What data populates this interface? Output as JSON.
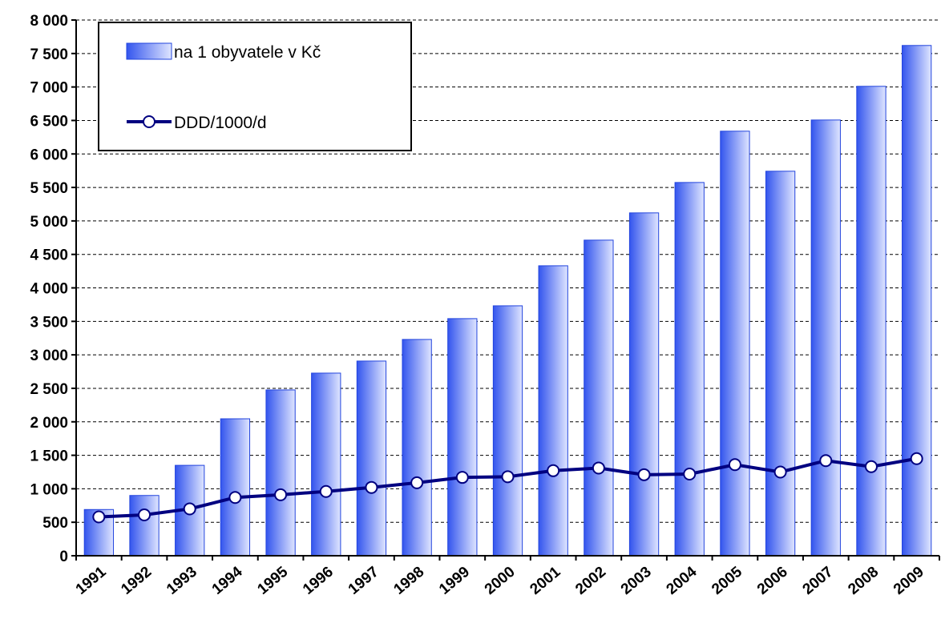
{
  "chart_data": {
    "type": "bar-line",
    "categories": [
      "1991",
      "1992",
      "1993",
      "1994",
      "1995",
      "1996",
      "1997",
      "1998",
      "1999",
      "2000",
      "2001",
      "2002",
      "2003",
      "2004",
      "2005",
      "2006",
      "2007",
      "2008",
      "2009"
    ],
    "series": [
      {
        "name": "na 1 obyvatele v Kč",
        "type": "bar",
        "color": "#3355ee",
        "values": [
          690,
          900,
          1350,
          2045,
          2476,
          2727,
          2907,
          3230,
          3541,
          3732,
          4330,
          4713,
          5120,
          5574,
          6340,
          5742,
          6507,
          7010,
          7620
        ]
      },
      {
        "name": "DDD/1000/d",
        "type": "line",
        "color": "#000080",
        "values": [
          580,
          610,
          700,
          870,
          910,
          960,
          1020,
          1090,
          1170,
          1180,
          1270,
          1310,
          1210,
          1220,
          1360,
          1250,
          1420,
          1330,
          1450
        ]
      }
    ],
    "ylim": [
      0,
      8000
    ],
    "yticks": [
      0,
      500,
      {
        "value": 1000,
        "label": "1 000"
      },
      {
        "value": 1500,
        "label": "1 500"
      },
      {
        "value": 2000,
        "label": "2 000"
      },
      {
        "value": 2500,
        "label": "2 500"
      },
      {
        "value": 3000,
        "label": "3 000"
      },
      {
        "value": 3500,
        "label": "3 500"
      },
      {
        "value": 4000,
        "label": "4 000"
      },
      {
        "value": 4500,
        "label": "4 500"
      },
      {
        "value": 5000,
        "label": "5 000"
      },
      {
        "value": 5500,
        "label": "5 500"
      },
      {
        "value": 6000,
        "label": "6 000"
      },
      {
        "value": 6500,
        "label": "6 500"
      },
      {
        "value": 7000,
        "label": "7 000"
      },
      {
        "value": 7500,
        "label": "7 500"
      },
      {
        "value": 8000,
        "label": "8 000"
      }
    ],
    "grid": true,
    "legend": "upper left"
  }
}
